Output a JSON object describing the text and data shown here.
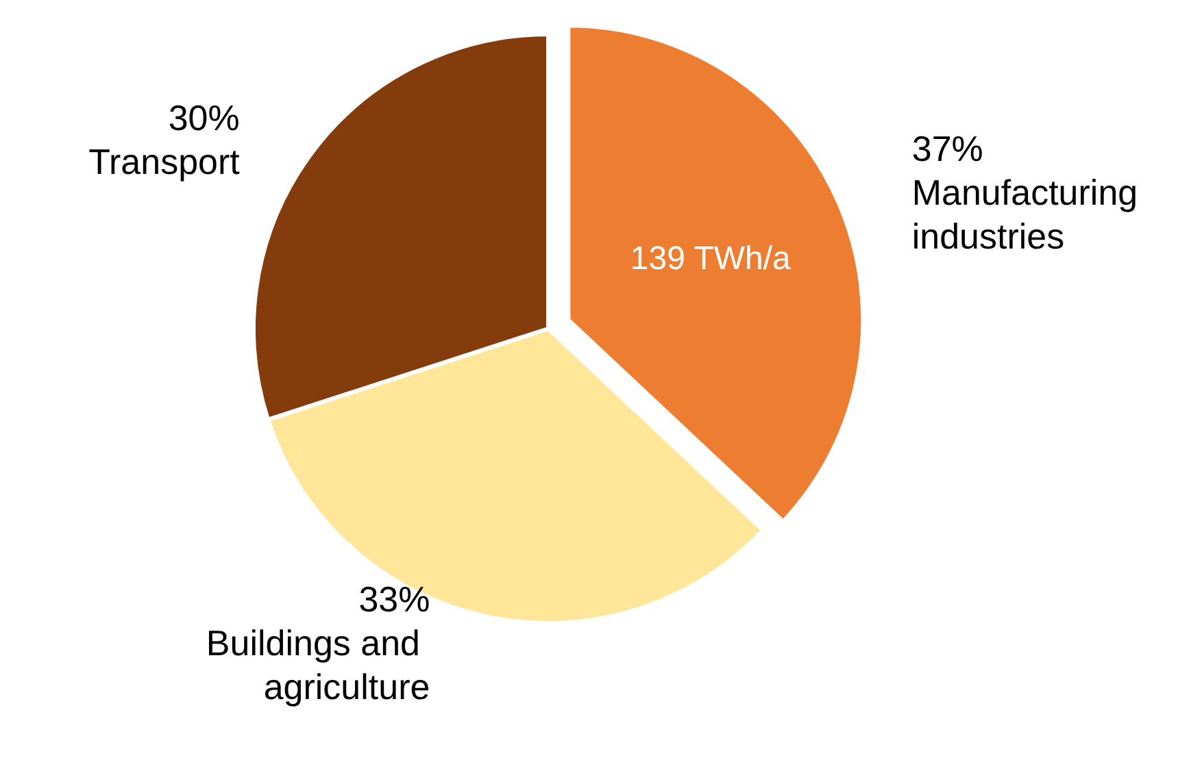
{
  "chart_data": {
    "type": "pie",
    "categories": [
      "Manufacturing industries",
      "Buildings and agriculture",
      "Transport"
    ],
    "values": [
      37,
      33,
      30
    ],
    "value_labels": [
      "37%",
      "33%",
      "30%"
    ],
    "colors": [
      "#ed7d31",
      "#ffe699",
      "#843c0c"
    ],
    "annotations": [
      "139 TWh/a"
    ],
    "legend": false
  }
}
